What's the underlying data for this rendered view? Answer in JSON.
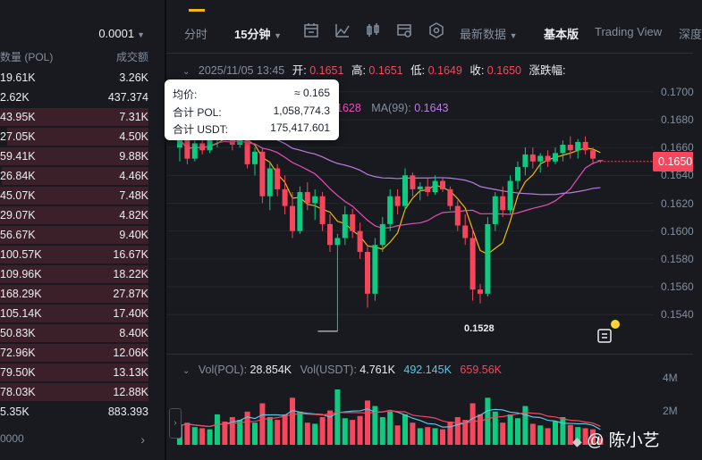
{
  "orderbook": {
    "precision": "0.0001",
    "col_amount": "数量 (POL)",
    "col_total": "成交额",
    "rows": [
      {
        "amount": "19.61K",
        "total": "3.26K",
        "side": "sell",
        "fill": 0.0
      },
      {
        "amount": "2.62K",
        "total": "437.374",
        "side": "sell",
        "fill": 0.0
      },
      {
        "amount": "43.95K",
        "total": "7.31K",
        "side": "sell",
        "fill": 1.0
      },
      {
        "amount": "27.05K",
        "total": "4.50K",
        "side": "sell",
        "fill": 0.95
      },
      {
        "amount": "59.41K",
        "total": "9.88K",
        "side": "sell",
        "fill": 1.0
      },
      {
        "amount": "26.84K",
        "total": "4.46K",
        "side": "sell",
        "fill": 0.99
      },
      {
        "amount": "45.07K",
        "total": "7.48K",
        "side": "sell",
        "fill": 1.0
      },
      {
        "amount": "29.07K",
        "total": "4.82K",
        "side": "sell",
        "fill": 1.0
      },
      {
        "amount": "56.67K",
        "total": "9.40K",
        "side": "sell",
        "fill": 1.0
      },
      {
        "amount": "100.57K",
        "total": "16.67K",
        "side": "sell",
        "fill": 1.0
      },
      {
        "amount": "109.96K",
        "total": "18.22K",
        "side": "sell",
        "fill": 1.0
      },
      {
        "amount": "168.29K",
        "total": "27.87K",
        "side": "sell",
        "fill": 1.0
      },
      {
        "amount": "105.14K",
        "total": "17.40K",
        "side": "sell",
        "fill": 1.0
      },
      {
        "amount": "50.83K",
        "total": "8.40K",
        "side": "sell",
        "fill": 1.0
      },
      {
        "amount": "72.96K",
        "total": "12.06K",
        "side": "sell",
        "fill": 1.0
      },
      {
        "amount": "79.50K",
        "total": "13.13K",
        "side": "sell",
        "fill": 1.0
      },
      {
        "amount": "78.03K",
        "total": "12.88K",
        "side": "sell",
        "fill": 1.0
      },
      {
        "amount": "5.35K",
        "total": "883.393",
        "side": "sell",
        "fill": 0.0
      }
    ],
    "bottom_value": "0000"
  },
  "toolbar": {
    "time_label": "分时",
    "interval_label": "15分钟",
    "latest_label": "最新数据",
    "basic_label": "基本版",
    "tradingview_label": "Trading View",
    "depth_label": "深度"
  },
  "ohlc": {
    "date": "2025/11/05 13:45",
    "open_label": "开:",
    "open": "0.1651",
    "high_label": "高:",
    "high": "0.1651",
    "low_label": "低:",
    "low": "0.1649",
    "close_label": "收:",
    "close": "0.1650",
    "change_label": "涨跌幅:"
  },
  "ma": {
    "ma_mid_value": "1628",
    "ma99_label": "MA(99):",
    "ma99_value": "0.1643",
    "colors": {
      "ma7": "#f0b90b",
      "ma25": "#e84fb5",
      "ma99": "#b77fe0"
    }
  },
  "tooltip": {
    "avg_label": "均价:",
    "avg_value": "≈ 0.165",
    "pol_label": "合计 POL:",
    "pol_value": "1,058,774.3",
    "usdt_label": "合计 USDT:",
    "usdt_value": "175,417.601"
  },
  "price_axis": [
    "0.1700",
    "0.1680",
    "0.1660",
    "0.1640",
    "0.1620",
    "0.1600",
    "0.1580",
    "0.1560",
    "0.1540"
  ],
  "current_price": "0.1650",
  "low_marker": "0.1528",
  "volume": {
    "vol_label": "Vol(POL):",
    "vol_value": "28.854K",
    "usdt_label": "Vol(USDT):",
    "usdt_value": "4.761K",
    "ma_a": "492.145K",
    "ma_b": "659.56K",
    "axis": [
      "4M",
      "2M"
    ]
  },
  "watermark": "@ 陈小艺",
  "colors": {
    "up": "#0ecb81",
    "down": "#f6465d",
    "accent": "#f0b90b",
    "background": "#181a20"
  },
  "candles": [
    {
      "o": 0.166,
      "h": 0.1672,
      "l": 0.165,
      "c": 0.1666,
      "v": 0.35
    },
    {
      "o": 0.1666,
      "h": 0.1668,
      "l": 0.1648,
      "c": 0.1652,
      "v": 0.4
    },
    {
      "o": 0.1652,
      "h": 0.1665,
      "l": 0.165,
      "c": 0.1663,
      "v": 0.32
    },
    {
      "o": 0.1663,
      "h": 0.167,
      "l": 0.1655,
      "c": 0.1658,
      "v": 0.3
    },
    {
      "o": 0.1658,
      "h": 0.1668,
      "l": 0.1656,
      "c": 0.1666,
      "v": 0.28
    },
    {
      "o": 0.1666,
      "h": 0.17,
      "l": 0.166,
      "c": 0.1675,
      "v": 0.55
    },
    {
      "o": 0.1675,
      "h": 0.1688,
      "l": 0.1665,
      "c": 0.167,
      "v": 0.42
    },
    {
      "o": 0.167,
      "h": 0.1678,
      "l": 0.1658,
      "c": 0.1662,
      "v": 0.5
    },
    {
      "o": 0.1662,
      "h": 0.1676,
      "l": 0.166,
      "c": 0.1672,
      "v": 0.45
    },
    {
      "o": 0.1672,
      "h": 0.1674,
      "l": 0.1645,
      "c": 0.1648,
      "v": 0.6
    },
    {
      "o": 0.1648,
      "h": 0.166,
      "l": 0.164,
      "c": 0.1657,
      "v": 0.4
    },
    {
      "o": 0.1657,
      "h": 0.166,
      "l": 0.162,
      "c": 0.1625,
      "v": 0.75
    },
    {
      "o": 0.1625,
      "h": 0.165,
      "l": 0.1615,
      "c": 0.1645,
      "v": 0.5
    },
    {
      "o": 0.1645,
      "h": 0.1648,
      "l": 0.1625,
      "c": 0.163,
      "v": 0.45
    },
    {
      "o": 0.163,
      "h": 0.164,
      "l": 0.1612,
      "c": 0.1618,
      "v": 0.55
    },
    {
      "o": 0.1618,
      "h": 0.1628,
      "l": 0.1595,
      "c": 0.16,
      "v": 0.85
    },
    {
      "o": 0.16,
      "h": 0.1632,
      "l": 0.1598,
      "c": 0.1628,
      "v": 0.6
    },
    {
      "o": 0.1628,
      "h": 0.1635,
      "l": 0.1615,
      "c": 0.162,
      "v": 0.4
    },
    {
      "o": 0.162,
      "h": 0.163,
      "l": 0.1608,
      "c": 0.1625,
      "v": 0.38
    },
    {
      "o": 0.1625,
      "h": 0.1628,
      "l": 0.16,
      "c": 0.1605,
      "v": 0.5
    },
    {
      "o": 0.1605,
      "h": 0.1612,
      "l": 0.1585,
      "c": 0.159,
      "v": 0.62
    },
    {
      "o": 0.159,
      "h": 0.1598,
      "l": 0.1528,
      "c": 0.1595,
      "v": 1.0
    },
    {
      "o": 0.1595,
      "h": 0.1618,
      "l": 0.159,
      "c": 0.1612,
      "v": 0.48
    },
    {
      "o": 0.1612,
      "h": 0.1616,
      "l": 0.1595,
      "c": 0.16,
      "v": 0.45
    },
    {
      "o": 0.16,
      "h": 0.1606,
      "l": 0.158,
      "c": 0.1585,
      "v": 0.52
    },
    {
      "o": 0.1585,
      "h": 0.159,
      "l": 0.1545,
      "c": 0.1555,
      "v": 0.8
    },
    {
      "o": 0.1555,
      "h": 0.1595,
      "l": 0.155,
      "c": 0.159,
      "v": 0.7
    },
    {
      "o": 0.159,
      "h": 0.161,
      "l": 0.1585,
      "c": 0.1605,
      "v": 0.5
    },
    {
      "o": 0.1605,
      "h": 0.163,
      "l": 0.16,
      "c": 0.1625,
      "v": 0.6
    },
    {
      "o": 0.1625,
      "h": 0.163,
      "l": 0.1612,
      "c": 0.1618,
      "v": 0.35
    },
    {
      "o": 0.1618,
      "h": 0.1645,
      "l": 0.1615,
      "c": 0.164,
      "v": 0.55
    },
    {
      "o": 0.164,
      "h": 0.1642,
      "l": 0.1625,
      "c": 0.163,
      "v": 0.4
    },
    {
      "o": 0.163,
      "h": 0.1635,
      "l": 0.1622,
      "c": 0.1632,
      "v": 0.3
    },
    {
      "o": 0.1632,
      "h": 0.1638,
      "l": 0.1625,
      "c": 0.1628,
      "v": 0.32
    },
    {
      "o": 0.1628,
      "h": 0.164,
      "l": 0.1626,
      "c": 0.1636,
      "v": 0.3
    },
    {
      "o": 0.1636,
      "h": 0.1638,
      "l": 0.1628,
      "c": 0.163,
      "v": 0.28
    },
    {
      "o": 0.163,
      "h": 0.1632,
      "l": 0.1615,
      "c": 0.1618,
      "v": 0.42
    },
    {
      "o": 0.1618,
      "h": 0.1622,
      "l": 0.16,
      "c": 0.1604,
      "v": 0.5
    },
    {
      "o": 0.1604,
      "h": 0.1612,
      "l": 0.159,
      "c": 0.1595,
      "v": 0.45
    },
    {
      "o": 0.1595,
      "h": 0.1602,
      "l": 0.155,
      "c": 0.1558,
      "v": 0.75
    },
    {
      "o": 0.1558,
      "h": 0.1562,
      "l": 0.1548,
      "c": 0.1555,
      "v": 0.55
    },
    {
      "o": 0.1555,
      "h": 0.161,
      "l": 0.1553,
      "c": 0.1605,
      "v": 0.85
    },
    {
      "o": 0.1605,
      "h": 0.1628,
      "l": 0.16,
      "c": 0.1625,
      "v": 0.6
    },
    {
      "o": 0.1625,
      "h": 0.1632,
      "l": 0.161,
      "c": 0.1615,
      "v": 0.4
    },
    {
      "o": 0.1615,
      "h": 0.164,
      "l": 0.1612,
      "c": 0.1636,
      "v": 0.55
    },
    {
      "o": 0.1636,
      "h": 0.165,
      "l": 0.163,
      "c": 0.1646,
      "v": 0.48
    },
    {
      "o": 0.1646,
      "h": 0.166,
      "l": 0.164,
      "c": 0.1655,
      "v": 0.7
    },
    {
      "o": 0.1655,
      "h": 0.166,
      "l": 0.1645,
      "c": 0.165,
      "v": 0.38
    },
    {
      "o": 0.165,
      "h": 0.1656,
      "l": 0.1642,
      "c": 0.1654,
      "v": 0.35
    },
    {
      "o": 0.1654,
      "h": 0.1658,
      "l": 0.1646,
      "c": 0.165,
      "v": 0.3
    },
    {
      "o": 0.165,
      "h": 0.166,
      "l": 0.1648,
      "c": 0.1656,
      "v": 0.42
    },
    {
      "o": 0.1656,
      "h": 0.1665,
      "l": 0.165,
      "c": 0.1662,
      "v": 0.5
    },
    {
      "o": 0.1662,
      "h": 0.1668,
      "l": 0.1652,
      "c": 0.1658,
      "v": 0.36
    },
    {
      "o": 0.1658,
      "h": 0.1666,
      "l": 0.1652,
      "c": 0.1664,
      "v": 0.32
    },
    {
      "o": 0.1664,
      "h": 0.1668,
      "l": 0.1655,
      "c": 0.1658,
      "v": 0.3
    },
    {
      "o": 0.1658,
      "h": 0.166,
      "l": 0.1648,
      "c": 0.1652,
      "v": 0.28
    },
    {
      "o": 0.1651,
      "h": 0.1651,
      "l": 0.1649,
      "c": 0.165,
      "v": 0.12
    }
  ]
}
